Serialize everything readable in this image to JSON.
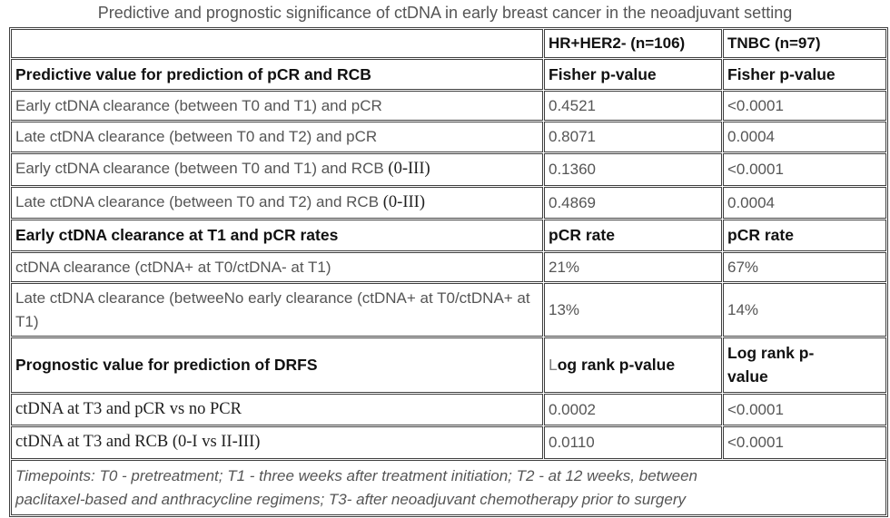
{
  "title": "Predictive and prognostic significance of ctDNA in early breast cancer in the neoadjuvant setting",
  "colors": {
    "text": "#555555",
    "heading": "#111111",
    "serif": "#1f1f1f",
    "border": "#3f3f3f",
    "title": "#555555",
    "light": "#7e7e7e",
    "bg": "#ffffff"
  },
  "table": {
    "header": {
      "col1": "",
      "col2": "HR+HER2- (n=106)",
      "col3": "TNBC (n=97)"
    },
    "rows": [
      {
        "type": "section",
        "c1": "Predictive value for prediction of pCR and RCB",
        "c2": "Fisher p-value",
        "c3": "Fisher p-value"
      },
      {
        "type": "data",
        "c1": "Early ctDNA clearance (between T0 and T1) and pCR",
        "c2": "0.4521",
        "c3": "<0.0001"
      },
      {
        "type": "data",
        "c1": "Late ctDNA clearance (between T0 and T2) and pCR",
        "c2": "0.8071",
        "c3": "0.0004"
      },
      {
        "type": "data",
        "c1": "Early ctDNA clearance (between T0 and T1) and RCB ",
        "c1_serif": "(0-III)",
        "c2": "0.1360",
        "c3": "<0.0001"
      },
      {
        "type": "data",
        "c1": "Late ctDNA clearance (between T0 and T2) and RCB ",
        "c1_serif": "(0-III)",
        "c2": "0.4869",
        "c3": "0.0004"
      },
      {
        "type": "section",
        "c1": "Early ctDNA clearance at T1 and pCR rates",
        "c2": "pCR rate",
        "c3": "pCR rate"
      },
      {
        "type": "data",
        "c1": "ctDNA clearance (ctDNA+ at T0/ctDNA- at T1)",
        "c2": "21%",
        "c3": "67%"
      },
      {
        "type": "data",
        "c1": "Late ctDNA clearance (betweeNo early clearance (ctDNA+ at T0/ctDNA+ at T1)",
        "c2": "13%",
        "c3": "14%"
      },
      {
        "type": "section",
        "c1": "Prognostic value for prediction of DRFS",
        "c2_light": "L",
        "c2_rest": "og rank p-value",
        "c3": "Log rank p-value"
      },
      {
        "type": "data-serif",
        "c1": "ctDNA at T3 and pCR vs no PCR",
        "c2": "0.0002",
        "c3": "<0.0001"
      },
      {
        "type": "data-serif",
        "c1": "ctDNA at T3 and RCB (0-I vs II-III)",
        "c2": "0.0110",
        "c3": "<0.0001"
      }
    ],
    "footer": "Timepoints: T0 - pretreatment; T1 - three weeks after treatment initiation; T2 - at 12 weeks, between paclitaxel-based and anthracycline regimens; T3- after neoadjuvant chemotherapy prior to surgery"
  }
}
